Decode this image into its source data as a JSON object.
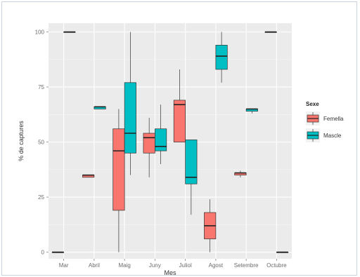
{
  "chart_data": {
    "type": "boxplot",
    "xlabel": "Mes",
    "ylabel": "% de captures",
    "ylim": [
      -3,
      104
    ],
    "yticks": [
      0,
      25,
      50,
      75,
      100
    ],
    "grid": true,
    "legend": {
      "title": "Sexe",
      "placement": "right"
    },
    "categories": [
      "Mar",
      "Abril",
      "Maig",
      "Juny",
      "Juliol",
      "Agost",
      "Setembre",
      "Octubre"
    ],
    "series": [
      {
        "name": "Femella",
        "color": "#f8766d",
        "boxes": [
          {
            "category": "Mar",
            "min": 0,
            "q1": 0,
            "median": 0,
            "q3": 0,
            "max": 0
          },
          {
            "category": "Abril",
            "min": 34,
            "q1": 34,
            "median": 35,
            "q3": 35,
            "max": 35
          },
          {
            "category": "Maig",
            "min": 0,
            "q1": 19,
            "median": 46,
            "q3": 56,
            "max": 65
          },
          {
            "category": "Juny",
            "min": 34,
            "q1": 45,
            "median": 52,
            "q3": 54,
            "max": 61
          },
          {
            "category": "Juliol",
            "min": 50,
            "q1": 50,
            "median": 67,
            "q3": 69,
            "max": 83
          },
          {
            "category": "Agost",
            "min": 0,
            "q1": 6,
            "median": 12,
            "q3": 18,
            "max": 24
          },
          {
            "category": "Setembre",
            "min": 34,
            "q1": 35,
            "median": 36,
            "q3": 36,
            "max": 37
          },
          {
            "category": "Octubre",
            "min": 100,
            "q1": 100,
            "median": 100,
            "q3": 100,
            "max": 100
          }
        ]
      },
      {
        "name": "Mascle",
        "color": "#00bfc4",
        "boxes": [
          {
            "category": "Mar",
            "min": 100,
            "q1": 100,
            "median": 100,
            "q3": 100,
            "max": 100
          },
          {
            "category": "Abril",
            "min": 65,
            "q1": 65,
            "median": 66,
            "q3": 66,
            "max": 66
          },
          {
            "category": "Maig",
            "min": 35,
            "q1": 45,
            "median": 54,
            "q3": 77,
            "max": 100
          },
          {
            "category": "Juny",
            "min": 40,
            "q1": 46,
            "median": 48,
            "q3": 56,
            "max": 67
          },
          {
            "category": "Juliol",
            "min": 17,
            "q1": 31,
            "median": 34,
            "q3": 51,
            "max": 51
          },
          {
            "category": "Agost",
            "min": 77,
            "q1": 83,
            "median": 89,
            "q3": 94,
            "max": 100
          },
          {
            "category": "Setembre",
            "min": 63,
            "q1": 64,
            "median": 65,
            "q3": 65,
            "max": 65
          },
          {
            "category": "Octubre",
            "min": 0,
            "q1": 0,
            "median": 0,
            "q3": 0,
            "max": 0
          }
        ]
      }
    ]
  }
}
